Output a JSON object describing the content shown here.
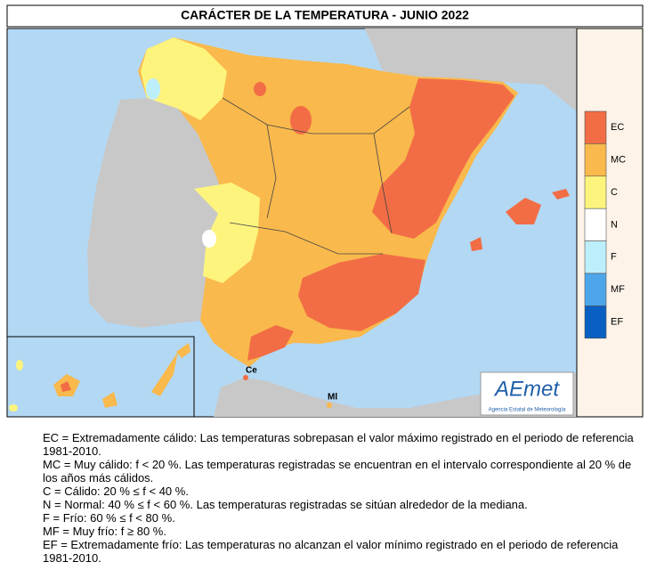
{
  "title": "CARÁCTER DE LA TEMPERATURA - JUNIO 2022",
  "legend": [
    {
      "code": "EC",
      "color": "#f26d45"
    },
    {
      "code": "MC",
      "color": "#f9b94c"
    },
    {
      "code": "C",
      "color": "#fdf47e"
    },
    {
      "code": "N",
      "color": "#ffffff"
    },
    {
      "code": "F",
      "color": "#bdeefb"
    },
    {
      "code": "MF",
      "color": "#4ea6ea"
    },
    {
      "code": "EF",
      "color": "#0a60c2"
    }
  ],
  "places": [
    "Ce",
    "Ml"
  ],
  "logo": {
    "name": "AEmet",
    "caption": "Agencia Estatal de Meteorología"
  },
  "definitions": [
    "EC = Extremadamente cálido: Las temperaturas sobrepasan el valor máximo registrado en el periodo de referencia 1981-2010.",
    "MC = Muy cálido: f < 20 %. Las temperaturas registradas se encuentran en el intervalo correspondiente al 20 % de los años más cálidos.",
    "C = Cálido: 20 % ≤ f < 40 %.",
    "N = Normal: 40 % ≤ f < 60 %. Las temperaturas registradas se sitúan alrededor de la mediana.",
    "F = Frío: 60 % ≤ f < 80 %.",
    "MF = Muy frío: f ≥ 80 %.",
    "EF = Extremadamente frío: Las temperaturas no alcanzan el valor mínimo registrado en el periodo de referencia 1981-2010."
  ]
}
